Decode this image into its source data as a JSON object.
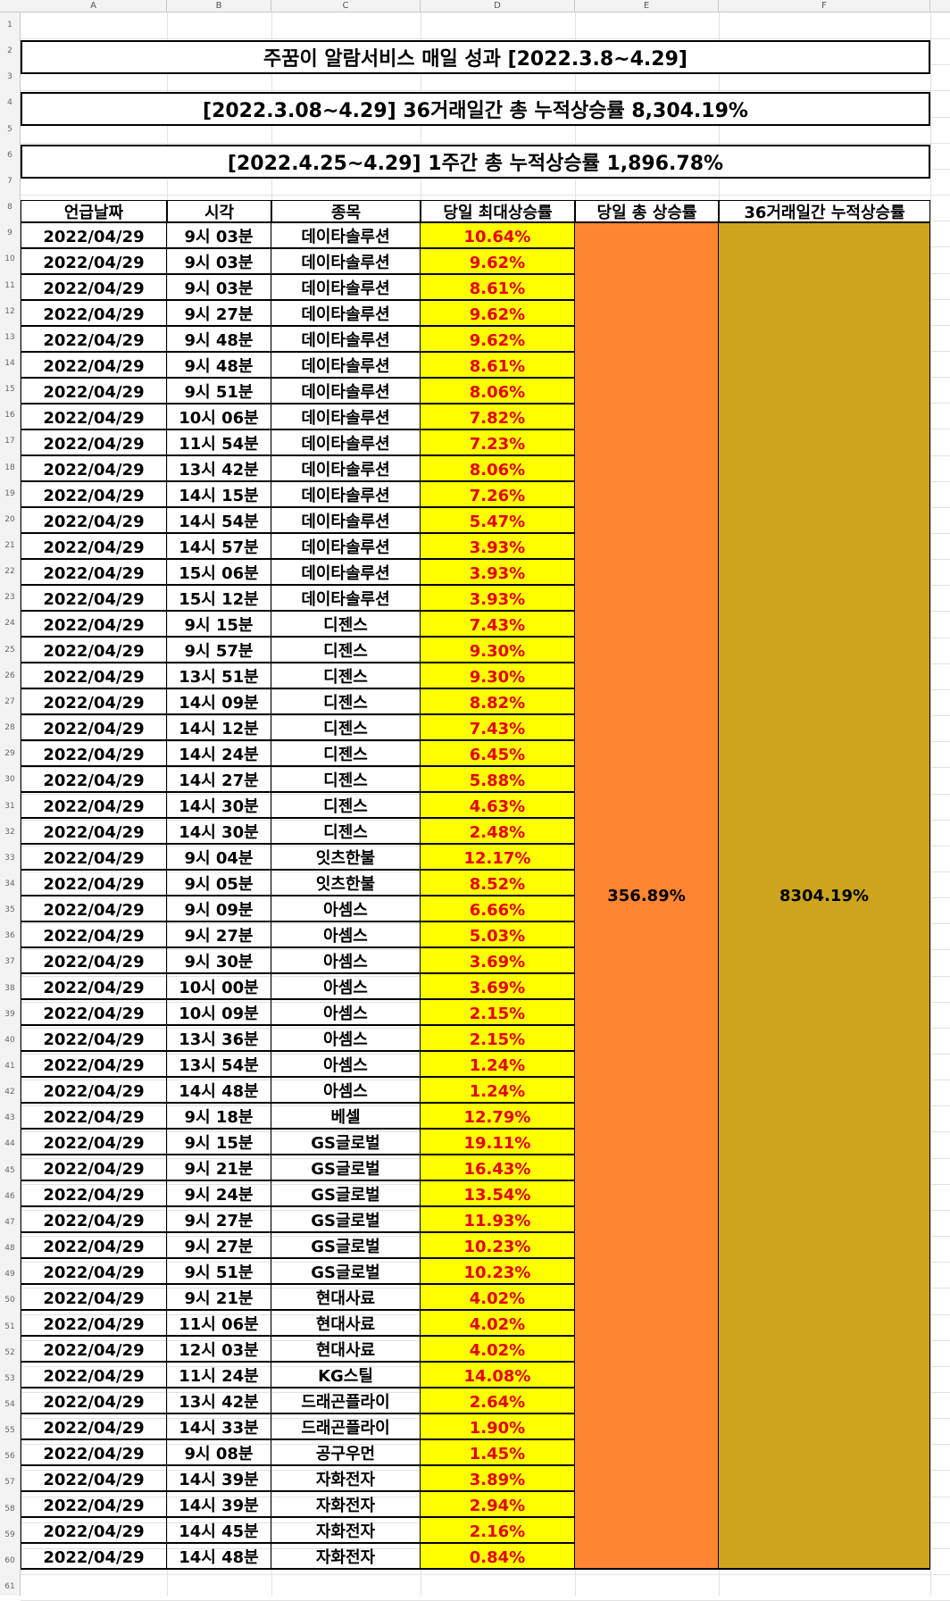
{
  "column_headers": [
    "A",
    "B",
    "C",
    "D",
    "E",
    "F"
  ],
  "row_numbers": [
    "1",
    "2",
    "3",
    "4",
    "5",
    "6",
    "7",
    "8",
    "9",
    "10",
    "11",
    "12",
    "13",
    "14",
    "15",
    "16",
    "17",
    "18",
    "19",
    "20",
    "21",
    "22",
    "23",
    "24",
    "25",
    "26",
    "27",
    "28",
    "29",
    "30",
    "31",
    "32",
    "33",
    "34",
    "35",
    "36",
    "37",
    "38",
    "39",
    "40",
    "41",
    "42",
    "43",
    "44",
    "45",
    "46",
    "47",
    "48",
    "49",
    "50",
    "51",
    "52",
    "53",
    "54",
    "55",
    "56",
    "57",
    "58",
    "59",
    "60",
    "61"
  ],
  "banners": {
    "title": "주꿈이 알람서비스 매일 성과 [2022.3.8~4.29]",
    "total": "[2022.3.08~4.29] 36거래일간 총 누적상승률 8,304.19%",
    "weekly": "[2022.4.25~4.29] 1주간 총 누적상승률 1,896.78%"
  },
  "table": {
    "headers": [
      "언급날짜",
      "시각",
      "종목",
      "당일 최대상승률",
      "당일 총 상승률",
      "36거래일간 누적상승률"
    ],
    "daily_total": "356.89%",
    "cumulative_total": "8304.19%",
    "colors": {
      "pct_bg": "#ffff00",
      "pct_text": "#e3000f",
      "daily_total_bg": "#ff8533",
      "cumulative_bg": "#cca41e"
    },
    "rows": [
      {
        "date": "2022/04/29",
        "time": "9시 03분",
        "stock": "데이타솔루션",
        "pct": "10.64%"
      },
      {
        "date": "2022/04/29",
        "time": "9시 03분",
        "stock": "데이타솔루션",
        "pct": "9.62%"
      },
      {
        "date": "2022/04/29",
        "time": "9시 03분",
        "stock": "데이타솔루션",
        "pct": "8.61%"
      },
      {
        "date": "2022/04/29",
        "time": "9시 27분",
        "stock": "데이타솔루션",
        "pct": "9.62%"
      },
      {
        "date": "2022/04/29",
        "time": "9시 48분",
        "stock": "데이타솔루션",
        "pct": "9.62%"
      },
      {
        "date": "2022/04/29",
        "time": "9시 48분",
        "stock": "데이타솔루션",
        "pct": "8.61%"
      },
      {
        "date": "2022/04/29",
        "time": "9시 51분",
        "stock": "데이타솔루션",
        "pct": "8.06%"
      },
      {
        "date": "2022/04/29",
        "time": "10시 06분",
        "stock": "데이타솔루션",
        "pct": "7.82%"
      },
      {
        "date": "2022/04/29",
        "time": "11시 54분",
        "stock": "데이타솔루션",
        "pct": "7.23%"
      },
      {
        "date": "2022/04/29",
        "time": "13시 42분",
        "stock": "데이타솔루션",
        "pct": "8.06%"
      },
      {
        "date": "2022/04/29",
        "time": "14시 15분",
        "stock": "데이타솔루션",
        "pct": "7.26%"
      },
      {
        "date": "2022/04/29",
        "time": "14시 54분",
        "stock": "데이타솔루션",
        "pct": "5.47%"
      },
      {
        "date": "2022/04/29",
        "time": "14시 57분",
        "stock": "데이타솔루션",
        "pct": "3.93%"
      },
      {
        "date": "2022/04/29",
        "time": "15시 06분",
        "stock": "데이타솔루션",
        "pct": "3.93%"
      },
      {
        "date": "2022/04/29",
        "time": "15시 12분",
        "stock": "데이타솔루션",
        "pct": "3.93%"
      },
      {
        "date": "2022/04/29",
        "time": "9시 15분",
        "stock": "디젠스",
        "pct": "7.43%"
      },
      {
        "date": "2022/04/29",
        "time": "9시 57분",
        "stock": "디젠스",
        "pct": "9.30%"
      },
      {
        "date": "2022/04/29",
        "time": "13시 51분",
        "stock": "디젠스",
        "pct": "9.30%"
      },
      {
        "date": "2022/04/29",
        "time": "14시 09분",
        "stock": "디젠스",
        "pct": "8.82%"
      },
      {
        "date": "2022/04/29",
        "time": "14시 12분",
        "stock": "디젠스",
        "pct": "7.43%"
      },
      {
        "date": "2022/04/29",
        "time": "14시 24분",
        "stock": "디젠스",
        "pct": "6.45%"
      },
      {
        "date": "2022/04/29",
        "time": "14시 27분",
        "stock": "디젠스",
        "pct": "5.88%"
      },
      {
        "date": "2022/04/29",
        "time": "14시 30분",
        "stock": "디젠스",
        "pct": "4.63%"
      },
      {
        "date": "2022/04/29",
        "time": "14시 30분",
        "stock": "디젠스",
        "pct": "2.48%"
      },
      {
        "date": "2022/04/29",
        "time": "9시 04분",
        "stock": "잇츠한불",
        "pct": "12.17%"
      },
      {
        "date": "2022/04/29",
        "time": "9시 05분",
        "stock": "잇츠한불",
        "pct": "8.52%"
      },
      {
        "date": "2022/04/29",
        "time": "9시 09분",
        "stock": "아셈스",
        "pct": "6.66%"
      },
      {
        "date": "2022/04/29",
        "time": "9시 27분",
        "stock": "아셈스",
        "pct": "5.03%"
      },
      {
        "date": "2022/04/29",
        "time": "9시 30분",
        "stock": "아셈스",
        "pct": "3.69%"
      },
      {
        "date": "2022/04/29",
        "time": "10시 00분",
        "stock": "아셈스",
        "pct": "3.69%"
      },
      {
        "date": "2022/04/29",
        "time": "10시 09분",
        "stock": "아셈스",
        "pct": "2.15%"
      },
      {
        "date": "2022/04/29",
        "time": "13시 36분",
        "stock": "아셈스",
        "pct": "2.15%"
      },
      {
        "date": "2022/04/29",
        "time": "13시 54분",
        "stock": "아셈스",
        "pct": "1.24%"
      },
      {
        "date": "2022/04/29",
        "time": "14시 48분",
        "stock": "아셈스",
        "pct": "1.24%"
      },
      {
        "date": "2022/04/29",
        "time": "9시 18분",
        "stock": "베셀",
        "pct": "12.79%"
      },
      {
        "date": "2022/04/29",
        "time": "9시 15분",
        "stock": "GS글로벌",
        "pct": "19.11%"
      },
      {
        "date": "2022/04/29",
        "time": "9시 21분",
        "stock": "GS글로벌",
        "pct": "16.43%"
      },
      {
        "date": "2022/04/29",
        "time": "9시 24분",
        "stock": "GS글로벌",
        "pct": "13.54%"
      },
      {
        "date": "2022/04/29",
        "time": "9시 27분",
        "stock": "GS글로벌",
        "pct": "11.93%"
      },
      {
        "date": "2022/04/29",
        "time": "9시 27분",
        "stock": "GS글로벌",
        "pct": "10.23%"
      },
      {
        "date": "2022/04/29",
        "time": "9시 51분",
        "stock": "GS글로벌",
        "pct": "10.23%"
      },
      {
        "date": "2022/04/29",
        "time": "9시 21분",
        "stock": "현대사료",
        "pct": "4.02%"
      },
      {
        "date": "2022/04/29",
        "time": "11시 06분",
        "stock": "현대사료",
        "pct": "4.02%"
      },
      {
        "date": "2022/04/29",
        "time": "12시 03분",
        "stock": "현대사료",
        "pct": "4.02%"
      },
      {
        "date": "2022/04/29",
        "time": "11시 24분",
        "stock": "KG스틸",
        "pct": "14.08%"
      },
      {
        "date": "2022/04/29",
        "time": "13시 42분",
        "stock": "드래곤플라이",
        "pct": "2.64%"
      },
      {
        "date": "2022/04/29",
        "time": "14시 33분",
        "stock": "드래곤플라이",
        "pct": "1.90%"
      },
      {
        "date": "2022/04/29",
        "time": "9시 08분",
        "stock": "공구우먼",
        "pct": "1.45%"
      },
      {
        "date": "2022/04/29",
        "time": "14시 39분",
        "stock": "자화전자",
        "pct": "3.89%"
      },
      {
        "date": "2022/04/29",
        "time": "14시 39분",
        "stock": "자화전자",
        "pct": "2.94%"
      },
      {
        "date": "2022/04/29",
        "time": "14시 45분",
        "stock": "자화전자",
        "pct": "2.16%"
      },
      {
        "date": "2022/04/29",
        "time": "14시 48분",
        "stock": "자화전자",
        "pct": "0.84%"
      }
    ]
  }
}
